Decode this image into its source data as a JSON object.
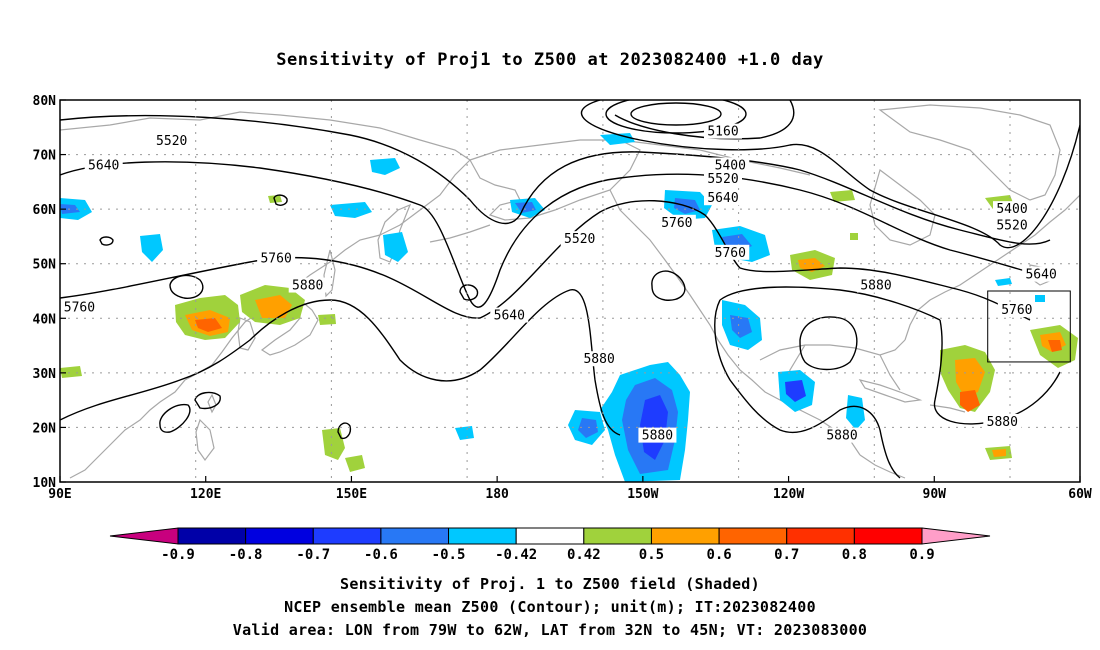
{
  "title": "Sensitivity of Proj1 to Z500 at 2023082400 +1.0 day",
  "captions": [
    "Sensitivity of Proj. 1 to Z500 field (Shaded)",
    "NCEP ensemble mean Z500 (Contour); unit(m); IT:2023082400",
    "Valid area: LON from 79W to 62W, LAT from 32N to 45N; VT: 2023083000"
  ],
  "map": {
    "lon_range": [
      90,
      300
    ],
    "lat_range": [
      10,
      80
    ],
    "lon_ticks": [
      {
        "lon": 90,
        "label": "90E"
      },
      {
        "lon": 120,
        "label": "120E"
      },
      {
        "lon": 150,
        "label": "150E"
      },
      {
        "lon": 180,
        "label": "180"
      },
      {
        "lon": 210,
        "label": "150W"
      },
      {
        "lon": 240,
        "label": "120W"
      },
      {
        "lon": 270,
        "label": "90W"
      },
      {
        "lon": 300,
        "label": "60W"
      }
    ],
    "lat_ticks": [
      {
        "lat": 10,
        "label": "10N"
      },
      {
        "lat": 20,
        "label": "20N"
      },
      {
        "lat": 30,
        "label": "30N"
      },
      {
        "lat": 40,
        "label": "40N"
      },
      {
        "lat": 50,
        "label": "50N"
      },
      {
        "lat": 60,
        "label": "60N"
      },
      {
        "lat": 70,
        "label": "70N"
      },
      {
        "lat": 80,
        "label": "80N"
      }
    ],
    "grid": true,
    "valid_box": {
      "lon": [
        281,
        298
      ],
      "lat": [
        32,
        45
      ]
    }
  },
  "colorbar": {
    "labels": [
      "-0.9",
      "-0.8",
      "-0.7",
      "-0.6",
      "-0.5",
      "-0.42",
      "0.42",
      "0.5",
      "0.6",
      "0.7",
      "0.8",
      "0.9"
    ],
    "colors": [
      "#c8007e",
      "#0000a8",
      "#0000e0",
      "#1e3cff",
      "#2878f5",
      "#00c8ff",
      "#ffffff",
      "#a0d23c",
      "#ffa000",
      "#ff6400",
      "#ff3000",
      "#ff0000",
      "#ff9ec8"
    ]
  },
  "contour_labels": [
    {
      "text": "5160",
      "lon": 226.5,
      "lat": 74.2
    },
    {
      "text": "5400",
      "lon": 228.0,
      "lat": 68.0
    },
    {
      "text": "5520",
      "lon": 226.5,
      "lat": 65.5
    },
    {
      "text": "5640",
      "lon": 226.5,
      "lat": 62.0
    },
    {
      "text": "5760",
      "lon": 217.0,
      "lat": 57.5
    },
    {
      "text": "5760",
      "lon": 228.0,
      "lat": 52.0
    },
    {
      "text": "5520",
      "lon": 113.0,
      "lat": 72.5
    },
    {
      "text": "5640",
      "lon": 99.0,
      "lat": 68.0
    },
    {
      "text": "5520",
      "lon": 197.0,
      "lat": 54.5
    },
    {
      "text": "5760",
      "lon": 134.5,
      "lat": 51.0
    },
    {
      "text": "5880",
      "lon": 141.0,
      "lat": 46.0
    },
    {
      "text": "5760",
      "lon": 94.0,
      "lat": 42.0
    },
    {
      "text": "5640",
      "lon": 182.5,
      "lat": 40.5
    },
    {
      "text": "5880",
      "lon": 201.0,
      "lat": 32.5
    },
    {
      "text": "5880",
      "lon": 213.0,
      "lat": 18.5
    },
    {
      "text": "5880",
      "lon": 258.0,
      "lat": 46.0
    },
    {
      "text": "5880",
      "lon": 251.0,
      "lat": 18.5
    },
    {
      "text": "5400",
      "lon": 286.0,
      "lat": 60.0
    },
    {
      "text": "5520",
      "lon": 286.0,
      "lat": 57.0
    },
    {
      "text": "5640",
      "lon": 292.0,
      "lat": 48.0
    },
    {
      "text": "5760",
      "lon": 287.0,
      "lat": 41.5
    },
    {
      "text": "5880",
      "lon": 284.0,
      "lat": 21.0
    }
  ]
}
